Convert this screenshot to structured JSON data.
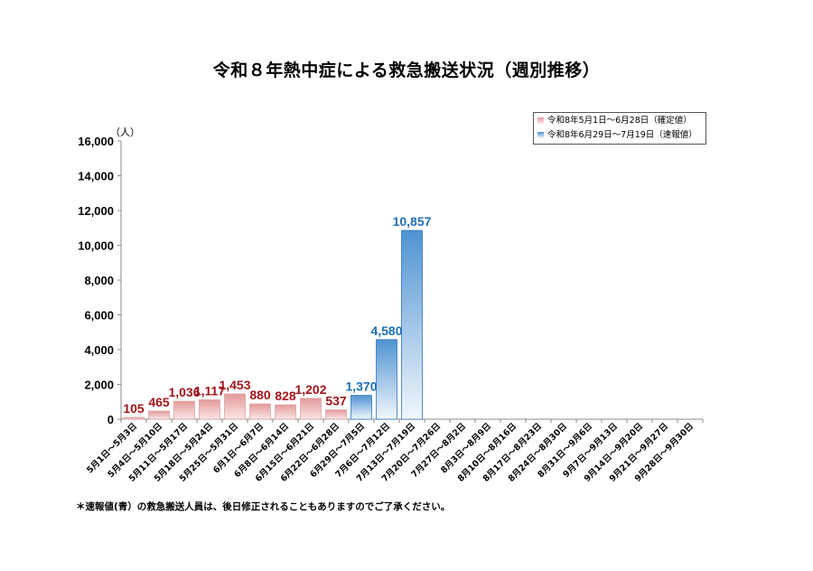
{
  "title": "令和８年熱中症による救急搬送状況（週別推移）",
  "footnote": "＊速報値(青）の救急搬送人員は、後日修正されることもありますのでご了承ください。",
  "colors": {
    "confirmed": "#e8a0a0",
    "preliminary": "#5b9bd5",
    "confirmed_label": "#a0151a",
    "preliminary_label": "#1f6fb5"
  },
  "chart_data": {
    "type": "bar",
    "title": "令和８年熱中症による救急搬送状況（週別推移）",
    "ylabel": "（人）",
    "ylim": [
      0,
      16000
    ],
    "yticks": [
      "0",
      "2,000",
      "4,000",
      "6,000",
      "8,000",
      "10,000",
      "12,000",
      "14,000",
      "16,000"
    ],
    "ytick_values": [
      0,
      2000,
      4000,
      6000,
      8000,
      10000,
      12000,
      14000,
      16000
    ],
    "legend_position": "top-right",
    "categories": [
      "5月1日～5月3日",
      "5月4日～5月10日",
      "5月11日～5月17日",
      "5月18日～5月24日",
      "5月25日～5月31日",
      "6月1日～6月7日",
      "6月8日～6月14日",
      "6月15日～6月21日",
      "6月22日～6月28日",
      "6月29日～7月5日",
      "7月6日～7月12日",
      "7月13日～7月19日",
      "7月20日～7月26日",
      "7月27日～8月2日",
      "8月3日～8月9日",
      "8月10日～8月16日",
      "8月17日～8月23日",
      "8月24日～8月30日",
      "8月31日～9月6日",
      "9月7日～9月13日",
      "9月14日～9月20日",
      "9月21日～9月27日",
      "9月28日～9月30日"
    ],
    "series": [
      {
        "name": "令和8年5月1日～6月28日（確定値）",
        "values": [
          105,
          465,
          1036,
          1117,
          1453,
          880,
          828,
          1202,
          537,
          null,
          null,
          null,
          null,
          null,
          null,
          null,
          null,
          null,
          null,
          null,
          null,
          null,
          null
        ],
        "labels": [
          "105",
          "465",
          "1,036",
          "1,117",
          "1,453",
          "880",
          "828",
          "1,202",
          "537",
          "",
          "",
          "",
          "",
          "",
          "",
          "",
          "",
          "",
          "",
          "",
          "",
          "",
          ""
        ]
      },
      {
        "name": "令和8年6月29日～7月19日（速報値）",
        "values": [
          null,
          null,
          null,
          null,
          null,
          null,
          null,
          null,
          null,
          1370,
          4580,
          10857,
          null,
          null,
          null,
          null,
          null,
          null,
          null,
          null,
          null,
          null,
          null
        ],
        "labels": [
          "",
          "",
          "",
          "",
          "",
          "",
          "",
          "",
          "",
          "1,370",
          "4,580",
          "10,857",
          "",
          "",
          "",
          "",
          "",
          "",
          "",
          "",
          "",
          "",
          ""
        ]
      }
    ]
  }
}
